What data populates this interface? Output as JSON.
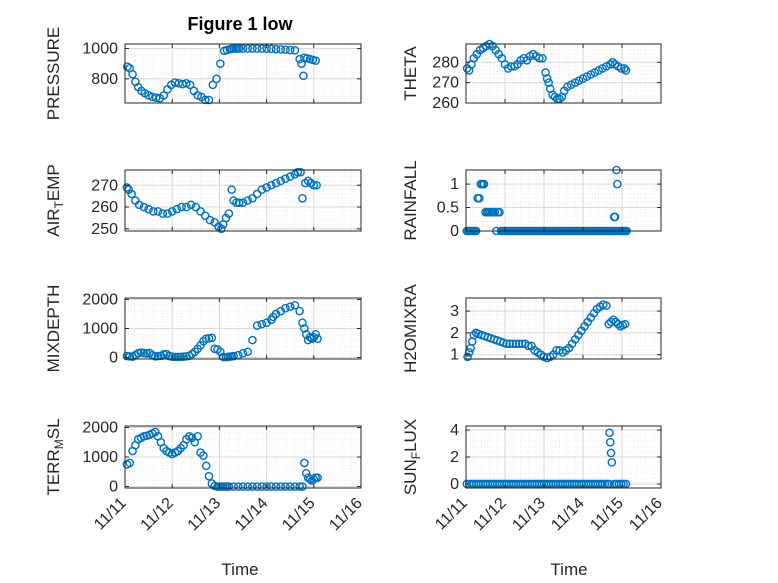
{
  "figure_title": "Figure 1 low",
  "colors": {
    "marker": "#0072BD",
    "axis": "#262626",
    "grid": "#d9d9d9",
    "minor_grid": "#e6e6e6"
  },
  "chart_data": [
    {
      "id": "pressure",
      "type": "scatter",
      "title": "Figure 1 low",
      "ylabel": "PRESSURE",
      "xlabel": "",
      "xlim": [
        0,
        5
      ],
      "xticks": [
        0,
        1,
        2,
        3,
        4,
        5
      ],
      "xticklabels": [],
      "ylim": [
        640,
        1030
      ],
      "yticks": [
        800,
        1000
      ],
      "yticklabels": [
        "800",
        "1000"
      ],
      "grid": true,
      "x": [
        0.05,
        0.1,
        0.16,
        0.22,
        0.28,
        0.35,
        0.42,
        0.5,
        0.58,
        0.66,
        0.74,
        0.82,
        0.9,
        0.98,
        1.06,
        1.14,
        1.22,
        1.3,
        1.38,
        1.46,
        1.54,
        1.62,
        1.7,
        1.78,
        1.86,
        1.94,
        2.02,
        2.1,
        2.16,
        2.22,
        2.26,
        2.3,
        2.34,
        2.38,
        2.42,
        2.5,
        2.6,
        2.7,
        2.8,
        2.9,
        3.0,
        3.1,
        3.2,
        3.3,
        3.4,
        3.5,
        3.6,
        3.7,
        3.74,
        3.78,
        3.8,
        3.86,
        3.92,
        3.98,
        4.04
      ],
      "y": [
        880,
        870,
        830,
        780,
        745,
        720,
        705,
        690,
        680,
        675,
        672,
        690,
        730,
        760,
        775,
        770,
        765,
        770,
        760,
        720,
        690,
        680,
        660,
        660,
        760,
        800,
        900,
        985,
        990,
        995,
        998,
        1000,
        1000,
        1000,
        1000,
        1000,
        1000,
        1000,
        1000,
        1000,
        1000,
        998,
        996,
        994,
        992,
        990,
        988,
        930,
        900,
        820,
        940,
        935,
        930,
        925,
        920
      ]
    },
    {
      "id": "theta",
      "type": "scatter",
      "ylabel": "THETA",
      "xlabel": "",
      "xlim": [
        0,
        5
      ],
      "xticks": [
        0,
        1,
        2,
        3,
        4,
        5
      ],
      "xticklabels": [],
      "ylim": [
        260,
        289
      ],
      "yticks": [
        260,
        270,
        280
      ],
      "yticklabels": [
        "260",
        "270",
        "280"
      ],
      "grid": true,
      "x": [
        0.03,
        0.08,
        0.14,
        0.2,
        0.28,
        0.36,
        0.44,
        0.52,
        0.6,
        0.68,
        0.76,
        0.84,
        0.92,
        1.0,
        1.08,
        1.16,
        1.24,
        1.32,
        1.4,
        1.48,
        1.56,
        1.64,
        1.72,
        1.8,
        1.88,
        1.96,
        2.04,
        2.08,
        2.12,
        2.16,
        2.22,
        2.28,
        2.34,
        2.4,
        2.46,
        2.52,
        2.6,
        2.7,
        2.8,
        2.9,
        3.0,
        3.1,
        3.2,
        3.3,
        3.4,
        3.5,
        3.6,
        3.7,
        3.76,
        3.82,
        3.9,
        3.98,
        4.06,
        4.1
      ],
      "y": [
        277,
        276,
        279,
        282,
        284,
        286,
        287,
        288,
        289,
        288,
        286,
        284,
        282,
        279,
        277,
        278,
        278,
        279,
        281,
        282,
        281,
        283,
        284,
        283,
        282,
        282,
        275,
        272,
        270,
        267,
        264,
        263,
        262,
        262,
        263,
        266,
        268,
        269,
        270,
        271,
        272,
        273,
        274,
        275,
        276,
        277,
        278,
        279,
        280,
        279,
        278,
        277,
        277,
        276
      ]
    },
    {
      "id": "air_temp",
      "type": "scatter",
      "ylabel": "AIR_TEMP",
      "xlabel": "",
      "xlim": [
        0,
        5
      ],
      "xticks": [
        0,
        1,
        2,
        3,
        4,
        5
      ],
      "xticklabels": [],
      "ylim": [
        249,
        277
      ],
      "yticks": [
        250,
        260,
        270
      ],
      "yticklabels": [
        "250",
        "260",
        "270"
      ],
      "grid": true,
      "x": [
        0.04,
        0.08,
        0.14,
        0.22,
        0.3,
        0.4,
        0.5,
        0.6,
        0.7,
        0.8,
        0.9,
        1.0,
        1.1,
        1.2,
        1.3,
        1.4,
        1.5,
        1.6,
        1.7,
        1.8,
        1.9,
        1.98,
        2.04,
        2.08,
        2.14,
        2.2,
        2.26,
        2.3,
        2.36,
        2.42,
        2.5,
        2.6,
        2.7,
        2.8,
        2.9,
        3.0,
        3.1,
        3.2,
        3.3,
        3.4,
        3.5,
        3.6,
        3.66,
        3.72,
        3.76,
        3.82,
        3.88,
        3.94,
        4.0,
        4.06
      ],
      "y": [
        269,
        268,
        266,
        263,
        261,
        260,
        259,
        258,
        258,
        257,
        257,
        258,
        259,
        260,
        260,
        261,
        260,
        258,
        256,
        254,
        253,
        251,
        250,
        252,
        255,
        257,
        268,
        263,
        262,
        262,
        262,
        263,
        264,
        266,
        268,
        269,
        270,
        271,
        272,
        273,
        274,
        275,
        276,
        276,
        264,
        271,
        272,
        271,
        270,
        270
      ]
    },
    {
      "id": "rainfall",
      "type": "scatter",
      "ylabel": "RAINFALL",
      "xlabel": "",
      "xlim": [
        0,
        5
      ],
      "xticks": [
        0,
        1,
        2,
        3,
        4,
        5
      ],
      "xticklabels": [],
      "ylim": [
        0,
        1.3
      ],
      "yticks": [
        0,
        0.5,
        1
      ],
      "yticklabels": [
        "0",
        "0.5",
        "1"
      ],
      "grid": true,
      "x": [
        0.02,
        0.06,
        0.1,
        0.14,
        0.18,
        0.22,
        0.26,
        0.3,
        0.34,
        0.38,
        0.42,
        0.46,
        0.5,
        0.54,
        0.58,
        0.62,
        0.66,
        0.7,
        0.74,
        0.78,
        0.82,
        0.86,
        0.9,
        0.94,
        0.98,
        1.02,
        1.06,
        1.1,
        1.14,
        1.18,
        1.22,
        1.26,
        1.3,
        1.34,
        1.38,
        1.42,
        1.46,
        1.5,
        1.54,
        1.58,
        1.62,
        1.66,
        1.7,
        1.74,
        1.78,
        1.82,
        1.86,
        1.9,
        1.94,
        1.98,
        2.02,
        2.06,
        2.1,
        2.14,
        2.18,
        2.22,
        2.26,
        2.3,
        2.34,
        2.38,
        2.42,
        2.46,
        2.5,
        2.54,
        2.58,
        2.62,
        2.66,
        2.7,
        2.74,
        2.78,
        2.82,
        2.86,
        2.9,
        2.94,
        2.98,
        3.02,
        3.06,
        3.1,
        3.14,
        3.18,
        3.22,
        3.26,
        3.3,
        3.34,
        3.38,
        3.42,
        3.46,
        3.5,
        3.54,
        3.58,
        3.62,
        3.66,
        3.7,
        3.74,
        3.78,
        3.8,
        3.82,
        3.84,
        3.86,
        3.88,
        3.92,
        3.96,
        4.0,
        4.04,
        4.08,
        4.12
      ],
      "y": [
        0,
        0,
        0,
        0,
        0,
        0,
        0,
        0.7,
        0.7,
        1,
        1,
        1,
        0.4,
        0.4,
        0.4,
        0.4,
        0.4,
        0.4,
        0.4,
        0,
        0.4,
        0.4,
        0,
        0,
        0,
        0,
        0,
        0,
        0,
        0,
        0,
        0,
        0,
        0,
        0,
        0,
        0,
        0,
        0,
        0,
        0,
        0,
        0,
        0,
        0,
        0,
        0,
        0,
        0,
        0,
        0,
        0,
        0,
        0,
        0,
        0,
        0,
        0,
        0,
        0,
        0,
        0,
        0,
        0,
        0,
        0,
        0,
        0,
        0,
        0,
        0,
        0,
        0,
        0,
        0,
        0,
        0,
        0,
        0,
        0,
        0,
        0,
        0,
        0,
        0,
        0,
        0,
        0,
        0,
        0,
        0,
        0,
        0,
        0,
        0,
        0.3,
        0.3,
        0,
        1.3,
        1,
        0,
        0,
        0,
        0,
        0,
        0
      ]
    },
    {
      "id": "mixdepth",
      "type": "scatter",
      "ylabel": "MIXDEPTH",
      "xlabel": "",
      "xlim": [
        0,
        5
      ],
      "xticks": [
        0,
        1,
        2,
        3,
        4,
        5
      ],
      "xticklabels": [],
      "ylim": [
        -50,
        2050
      ],
      "yticks": [
        0,
        1000,
        2000
      ],
      "yticklabels": [
        "0",
        "1000",
        "2000"
      ],
      "grid": true,
      "x": [
        0.04,
        0.1,
        0.16,
        0.22,
        0.28,
        0.34,
        0.4,
        0.46,
        0.52,
        0.58,
        0.64,
        0.7,
        0.76,
        0.82,
        0.88,
        0.94,
        1.0,
        1.06,
        1.12,
        1.18,
        1.24,
        1.3,
        1.36,
        1.42,
        1.48,
        1.54,
        1.6,
        1.66,
        1.72,
        1.78,
        1.84,
        1.9,
        1.96,
        2.02,
        2.08,
        2.14,
        2.18,
        2.22,
        2.26,
        2.3,
        2.4,
        2.5,
        2.6,
        2.7,
        2.8,
        2.9,
        3.0,
        3.1,
        3.14,
        3.2,
        3.3,
        3.4,
        3.5,
        3.6,
        3.7,
        3.76,
        3.8,
        3.84,
        3.88,
        3.92,
        3.96,
        4.0,
        4.04,
        4.08
      ],
      "y": [
        50,
        40,
        30,
        80,
        150,
        170,
        160,
        140,
        160,
        80,
        40,
        50,
        60,
        110,
        120,
        50,
        30,
        20,
        20,
        20,
        30,
        40,
        60,
        120,
        200,
        300,
        420,
        560,
        650,
        660,
        680,
        300,
        280,
        200,
        20,
        10,
        20,
        30,
        40,
        50,
        80,
        150,
        200,
        600,
        1100,
        1150,
        1200,
        1300,
        1400,
        1500,
        1600,
        1700,
        1750,
        1800,
        1600,
        1200,
        1000,
        800,
        600,
        700,
        650,
        700,
        800,
        650
      ]
    },
    {
      "id": "h2omixra",
      "type": "scatter",
      "ylabel": "H2OMIXRA",
      "xlabel": "",
      "xlim": [
        0,
        5
      ],
      "xticks": [
        0,
        1,
        2,
        3,
        4,
        5
      ],
      "xticklabels": [],
      "ylim": [
        0.8,
        3.6
      ],
      "yticks": [
        1,
        2,
        3
      ],
      "yticklabels": [
        "1",
        "2",
        "3"
      ],
      "grid": true,
      "x": [
        0.04,
        0.08,
        0.12,
        0.16,
        0.2,
        0.26,
        0.32,
        0.4,
        0.48,
        0.56,
        0.64,
        0.72,
        0.8,
        0.88,
        0.96,
        1.04,
        1.12,
        1.2,
        1.28,
        1.36,
        1.44,
        1.52,
        1.6,
        1.68,
        1.76,
        1.84,
        1.92,
        2.0,
        2.08,
        2.16,
        2.24,
        2.32,
        2.4,
        2.48,
        2.56,
        2.64,
        2.72,
        2.8,
        2.88,
        2.96,
        3.04,
        3.12,
        3.2,
        3.28,
        3.36,
        3.44,
        3.52,
        3.6,
        3.66,
        3.72,
        3.78,
        3.84,
        3.9,
        3.96,
        4.02,
        4.08
      ],
      "y": [
        0.9,
        1.1,
        1.3,
        1.6,
        1.9,
        2.0,
        1.95,
        1.9,
        1.85,
        1.8,
        1.75,
        1.7,
        1.65,
        1.6,
        1.55,
        1.5,
        1.5,
        1.5,
        1.5,
        1.5,
        1.5,
        1.5,
        1.4,
        1.4,
        1.2,
        1.1,
        1.0,
        0.9,
        0.85,
        0.9,
        1.0,
        1.2,
        1.2,
        1.1,
        1.2,
        1.3,
        1.5,
        1.7,
        1.9,
        2.1,
        2.3,
        2.5,
        2.7,
        2.9,
        3.1,
        3.2,
        3.3,
        3.25,
        2.4,
        2.5,
        2.6,
        2.5,
        2.4,
        2.3,
        2.35,
        2.4
      ]
    },
    {
      "id": "terr_msl",
      "type": "scatter",
      "ylabel": "TERR_MSL",
      "xlabel": "",
      "xlim": [
        0,
        5
      ],
      "xticks": [
        0,
        1,
        2,
        3,
        4,
        5
      ],
      "xticklabels": [
        "11/11",
        "11/12",
        "11/13",
        "11/14",
        "11/15",
        "11/16"
      ],
      "ylim": [
        -50,
        2050
      ],
      "yticks": [
        0,
        1000,
        2000
      ],
      "yticklabels": [
        "0",
        "1000",
        "2000"
      ],
      "grid": true,
      "x": [
        0.04,
        0.1,
        0.16,
        0.22,
        0.28,
        0.34,
        0.4,
        0.46,
        0.52,
        0.58,
        0.64,
        0.7,
        0.76,
        0.82,
        0.88,
        0.94,
        1.0,
        1.06,
        1.12,
        1.18,
        1.24,
        1.3,
        1.36,
        1.42,
        1.48,
        1.54,
        1.6,
        1.66,
        1.72,
        1.78,
        1.84,
        1.9,
        1.96,
        2.0,
        2.04,
        2.08,
        2.12,
        2.16,
        2.2,
        2.3,
        2.4,
        2.5,
        2.6,
        2.7,
        2.8,
        2.9,
        3.0,
        3.1,
        3.2,
        3.3,
        3.4,
        3.5,
        3.6,
        3.7,
        3.76,
        3.8,
        3.84,
        3.88,
        3.92,
        3.96,
        4.0,
        4.04,
        4.08
      ],
      "y": [
        750,
        800,
        1200,
        1400,
        1600,
        1650,
        1700,
        1720,
        1750,
        1800,
        1850,
        1700,
        1500,
        1300,
        1200,
        1150,
        1100,
        1150,
        1200,
        1300,
        1400,
        1600,
        1700,
        1650,
        1500,
        1700,
        1150,
        1050,
        700,
        350,
        100,
        20,
        0,
        0,
        0,
        0,
        0,
        0,
        0,
        0,
        0,
        0,
        0,
        0,
        0,
        0,
        0,
        0,
        0,
        0,
        0,
        0,
        0,
        0,
        0,
        800,
        450,
        300,
        250,
        200,
        250,
        300,
        300
      ]
    },
    {
      "id": "sun_flux",
      "type": "scatter",
      "ylabel": "SUN_FLUX",
      "xlabel": "",
      "xlim": [
        0,
        5
      ],
      "xticks": [
        0,
        1,
        2,
        3,
        4,
        5
      ],
      "xticklabels": [
        "11/11",
        "11/12",
        "11/13",
        "11/14",
        "11/15",
        "11/16"
      ],
      "ylim": [
        -0.3,
        4.3
      ],
      "yticks": [
        0,
        2,
        4
      ],
      "yticklabels": [
        "0",
        "2",
        "4"
      ],
      "grid": true,
      "x": [
        0.02,
        0.08,
        0.14,
        0.2,
        0.26,
        0.32,
        0.38,
        0.44,
        0.5,
        0.56,
        0.62,
        0.68,
        0.74,
        0.8,
        0.86,
        0.92,
        0.98,
        1.04,
        1.1,
        1.16,
        1.22,
        1.28,
        1.34,
        1.4,
        1.46,
        1.52,
        1.58,
        1.64,
        1.7,
        1.76,
        1.82,
        1.88,
        1.94,
        2.0,
        2.06,
        2.12,
        2.18,
        2.24,
        2.3,
        2.36,
        2.42,
        2.48,
        2.54,
        2.6,
        2.66,
        2.72,
        2.78,
        2.84,
        2.9,
        2.96,
        3.02,
        3.08,
        3.14,
        3.2,
        3.26,
        3.32,
        3.38,
        3.44,
        3.5,
        3.56,
        3.62,
        3.66,
        3.68,
        3.7,
        3.72,
        3.74,
        3.8,
        3.86,
        3.92,
        3.98,
        4.04,
        4.1
      ],
      "y": [
        0,
        0,
        0,
        0,
        0,
        0,
        0,
        0,
        0,
        0,
        0,
        0,
        0,
        0,
        0,
        0,
        0,
        0,
        0,
        0,
        0,
        0,
        0,
        0,
        0,
        0,
        0,
        0,
        0,
        0,
        0,
        0,
        0,
        0,
        0,
        0,
        0,
        0,
        0,
        0,
        0,
        0,
        0,
        0,
        0,
        0,
        0,
        0,
        0,
        0,
        0,
        0,
        0,
        0,
        0,
        0,
        0,
        0,
        0,
        0,
        0,
        0,
        3.8,
        3.1,
        2.3,
        1.6,
        0,
        0,
        0,
        0,
        0,
        0
      ]
    }
  ],
  "axis_titles": {
    "left_column_xlabel": "Time",
    "right_column_xlabel": "Time"
  }
}
